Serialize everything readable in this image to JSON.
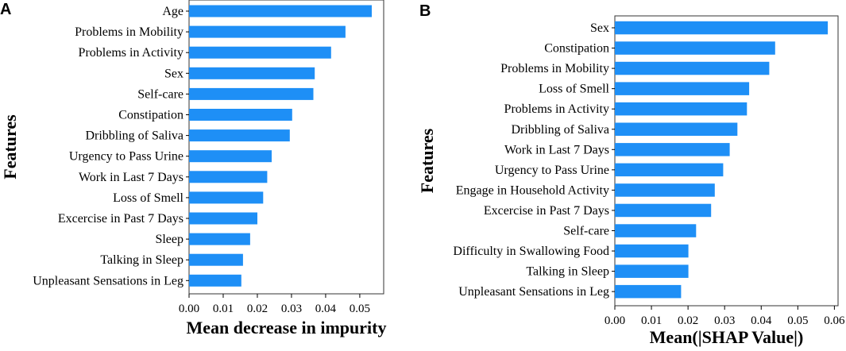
{
  "chart_data": [
    {
      "panel": "A",
      "type": "bar",
      "orientation": "horizontal",
      "categories": [
        "Age",
        "Problems in Mobility",
        "Problems in Activity",
        "Sex",
        "Self-care",
        "Constipation",
        "Dribbling of Saliva",
        "Urgency to Pass Urine",
        "Work in Last 7 Days",
        "Loss of Smell",
        "Excercise in Past 7 Days",
        "Sleep",
        "Talking in Sleep",
        "Unpleasant Sensations in Leg"
      ],
      "values": [
        0.0535,
        0.0458,
        0.0416,
        0.0368,
        0.0364,
        0.0302,
        0.0295,
        0.0242,
        0.0229,
        0.0217,
        0.02,
        0.0179,
        0.0158,
        0.0153
      ],
      "xlabel": "Mean decrease in impurity",
      "ylabel": "Features",
      "xlim": [
        0.0,
        0.057
      ],
      "xticks": [
        "0.00",
        "0.01",
        "0.02",
        "0.03",
        "0.04",
        "0.05"
      ],
      "bar_color": "#1e8ff6"
    },
    {
      "panel": "B",
      "type": "bar",
      "orientation": "horizontal",
      "categories": [
        "Sex",
        "Constipation",
        "Problems in Mobility",
        "Loss of Smell",
        "Problems in Activity",
        "Dribbling of Saliva",
        "Work in Last 7 Days",
        "Urgency to Pass Urine",
        "Engage in Household Activity",
        "Excercise in Past 7 Days",
        "Self-care",
        "Difficulty in Swallowing Food",
        "Talking in Sleep",
        "Unpleasant Sensations in Leg"
      ],
      "values": [
        0.0582,
        0.0438,
        0.0422,
        0.0367,
        0.0361,
        0.0335,
        0.0314,
        0.0296,
        0.0273,
        0.0263,
        0.0222,
        0.0201,
        0.0201,
        0.0181
      ],
      "xlabel": "Mean(|SHAP Value|)",
      "ylabel": "Features",
      "xlim": [
        0.0,
        0.061
      ],
      "xticks": [
        "0.00",
        "0.01",
        "0.02",
        "0.03",
        "0.04",
        "0.05",
        "0.06"
      ],
      "bar_color": "#1e8ff6"
    }
  ]
}
